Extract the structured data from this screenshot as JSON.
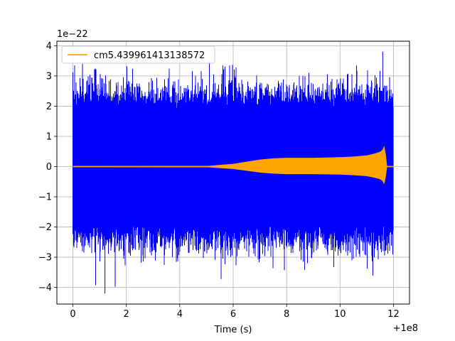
{
  "chart_data": {
    "type": "line",
    "title": "",
    "xlabel": "Time (s)",
    "ylabel": "",
    "x_offset_label": "+1e8",
    "y_scale_label": "1e−22",
    "xlim": [
      -0.6,
      12.6
    ],
    "ylim": [
      -4.55,
      4.15
    ],
    "x_ticks": [
      0,
      2,
      4,
      6,
      8,
      10,
      12
    ],
    "x_tick_labels": [
      "0",
      "2",
      "4",
      "6",
      "8",
      "10",
      "12"
    ],
    "y_ticks": [
      -4,
      -3,
      -2,
      -1,
      0,
      1,
      2,
      3,
      4
    ],
    "y_tick_labels": [
      "−4",
      "−3",
      "−2",
      "−1",
      "0",
      "1",
      "2",
      "3",
      "4"
    ],
    "grid": true,
    "legend_position": "upper-left",
    "series": [
      {
        "name": "",
        "color": "#0000ff",
        "description": "noise strain time series",
        "x_range": [
          0,
          12.0
        ],
        "typical_envelope": [
          -2.2,
          2.2
        ],
        "max_value": 3.8,
        "min_value": -4.2,
        "min_at_x": 1.2
      },
      {
        "name": "cm5.439961413138572",
        "color": "#ffa500",
        "description": "chirp template",
        "x": [
          0,
          5.0,
          6.0,
          6.5,
          7.0,
          7.5,
          8.0,
          9.0,
          10.0,
          10.5,
          11.0,
          11.3,
          11.5,
          11.6,
          11.65,
          11.7,
          11.75,
          12.0
        ],
        "amplitude": [
          0,
          0.01,
          0.08,
          0.15,
          0.22,
          0.26,
          0.28,
          0.28,
          0.3,
          0.32,
          0.36,
          0.42,
          0.48,
          0.55,
          0.65,
          0.4,
          0,
          0
        ]
      }
    ]
  }
}
